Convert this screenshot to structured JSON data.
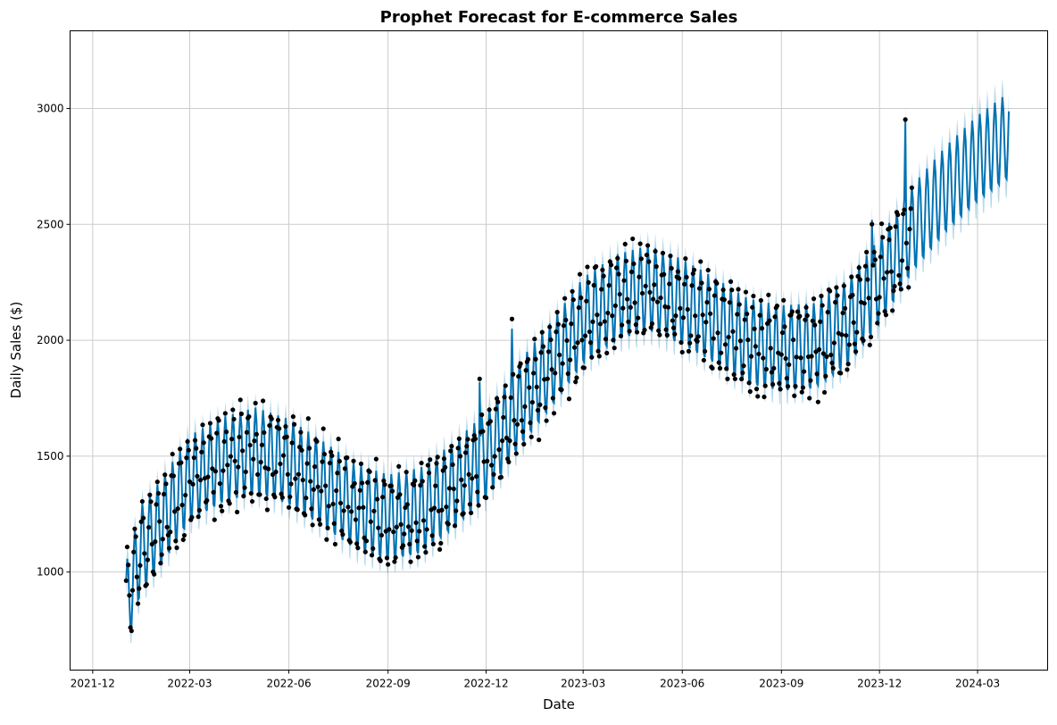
{
  "chart_data": {
    "type": "line",
    "title": "Prophet Forecast for E-commerce Sales",
    "xlabel": "Date",
    "ylabel": "Daily Sales ($)",
    "x_range": [
      "2021-11-10",
      "2024-05-05"
    ],
    "ylim": [
      577,
      3335
    ],
    "grid": true,
    "x_ticks": [
      "2021-12",
      "2022-03",
      "2022-06",
      "2022-09",
      "2022-12",
      "2023-03",
      "2023-06",
      "2023-09",
      "2023-12",
      "2024-03"
    ],
    "y_ticks": [
      1000,
      1500,
      2000,
      2500,
      3000
    ],
    "history_range": [
      "2022-01-01",
      "2023-12-31"
    ],
    "forecast_range": [
      "2022-01-01",
      "2024-03-30"
    ],
    "forecast_trend": {
      "dates": [
        "2022-01-01",
        "2022-01-15",
        "2022-02-01",
        "2022-03-01",
        "2022-04-01",
        "2022-05-01",
        "2022-06-01",
        "2022-07-01",
        "2022-08-01",
        "2022-09-01",
        "2022-10-01",
        "2022-11-01",
        "2022-12-01",
        "2023-01-01",
        "2023-02-01",
        "2023-03-01",
        "2023-04-01",
        "2023-05-01",
        "2023-06-01",
        "2023-07-01",
        "2023-08-01",
        "2023-09-01",
        "2023-10-01",
        "2023-11-01",
        "2023-12-01",
        "2024-01-01",
        "2024-02-01",
        "2024-03-01",
        "2024-03-30"
      ],
      "values": [
        850,
        1100,
        1200,
        1400,
        1480,
        1520,
        1470,
        1380,
        1280,
        1230,
        1260,
        1370,
        1500,
        1720,
        1900,
        2080,
        2180,
        2220,
        2160,
        2080,
        1990,
        1960,
        1970,
        2070,
        2250,
        2480,
        2650,
        2780,
        2880
      ]
    },
    "weekly_amplitude": 190,
    "interval_half_width": 65,
    "holiday_spikes": [
      {
        "date": "2022-11-25",
        "value": 1820
      },
      {
        "date": "2022-12-25",
        "value": 2050
      },
      {
        "date": "2023-11-24",
        "value": 2520
      },
      {
        "date": "2023-12-25",
        "value": 2950
      }
    ],
    "colors": {
      "forecast": "#0072B2",
      "interval": "#0072B2",
      "observed": "#000000",
      "grid": "#cccccc"
    },
    "series": [
      {
        "name": "",
        "kind": "observed points"
      },
      {
        "name": "",
        "kind": "forecast yhat"
      },
      {
        "name": "",
        "kind": "uncertainty interval"
      }
    ]
  }
}
